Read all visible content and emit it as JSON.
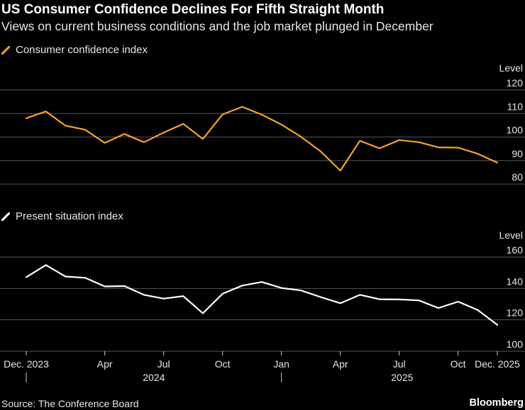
{
  "title": "US Consumer Confidence Declines For Fifth Straight Month",
  "subtitle": "Views on current business conditions and the job market plunged in December",
  "source": "Source: The Conference Board",
  "brand": "Bloomberg",
  "colors": {
    "series1": "#f5a033",
    "series2": "#ffffff",
    "grid": "#555555",
    "axis_text": "#e6e6e6"
  },
  "x_axis": {
    "tick_labels": [
      "Dec. 2023",
      "Apr",
      "Jul",
      "Oct",
      "Jan",
      "Apr",
      "Jul",
      "Oct",
      "Dec. 2025"
    ],
    "tick_months": [
      "2023-12",
      "2024-04",
      "2024-07",
      "2024-10",
      "2025-01",
      "2025-04",
      "2025-07",
      "2025-10",
      "2025-12"
    ],
    "year_labels": [
      "2024",
      "2025"
    ],
    "year_dividers": [
      "2023-12",
      "2025-01"
    ]
  },
  "chart_data": [
    {
      "type": "line",
      "legend": "Consumer confidence index",
      "ylabel": "Level",
      "ylim": [
        80,
        120
      ],
      "yticks": [
        80,
        90,
        100,
        110,
        120
      ],
      "grid": true,
      "x": [
        "2023-12",
        "2024-01",
        "2024-02",
        "2024-03",
        "2024-04",
        "2024-05",
        "2024-06",
        "2024-07",
        "2024-08",
        "2024-09",
        "2024-10",
        "2024-11",
        "2024-12",
        "2025-01",
        "2025-02",
        "2025-03",
        "2025-04",
        "2025-05",
        "2025-06",
        "2025-07",
        "2025-08",
        "2025-09",
        "2025-10",
        "2025-11",
        "2025-12"
      ],
      "values": [
        108.0,
        110.9,
        104.8,
        103.1,
        97.5,
        101.3,
        97.8,
        101.9,
        105.6,
        99.2,
        109.6,
        112.8,
        109.5,
        105.3,
        100.1,
        93.9,
        85.7,
        98.4,
        95.2,
        98.7,
        97.8,
        95.6,
        95.5,
        92.9,
        89.1
      ]
    },
    {
      "type": "line",
      "legend": "Present situation index",
      "ylabel": "Level",
      "ylim": [
        100,
        160
      ],
      "yticks": [
        100,
        120,
        140,
        160
      ],
      "grid": true,
      "x": [
        "2023-12",
        "2024-01",
        "2024-02",
        "2024-03",
        "2024-04",
        "2024-05",
        "2024-06",
        "2024-07",
        "2024-08",
        "2024-09",
        "2024-10",
        "2024-11",
        "2024-12",
        "2025-01",
        "2025-02",
        "2025-03",
        "2025-04",
        "2025-05",
        "2025-06",
        "2025-07",
        "2025-08",
        "2025-09",
        "2025-10",
        "2025-11",
        "2025-12"
      ],
      "values": [
        147.2,
        154.9,
        147.6,
        146.8,
        141.3,
        141.5,
        135.9,
        133.5,
        135.1,
        124.2,
        136.6,
        141.8,
        144.1,
        140.3,
        138.7,
        134.5,
        130.6,
        135.9,
        133.1,
        133.0,
        132.4,
        127.5,
        131.6,
        126.3,
        116.8
      ]
    }
  ]
}
